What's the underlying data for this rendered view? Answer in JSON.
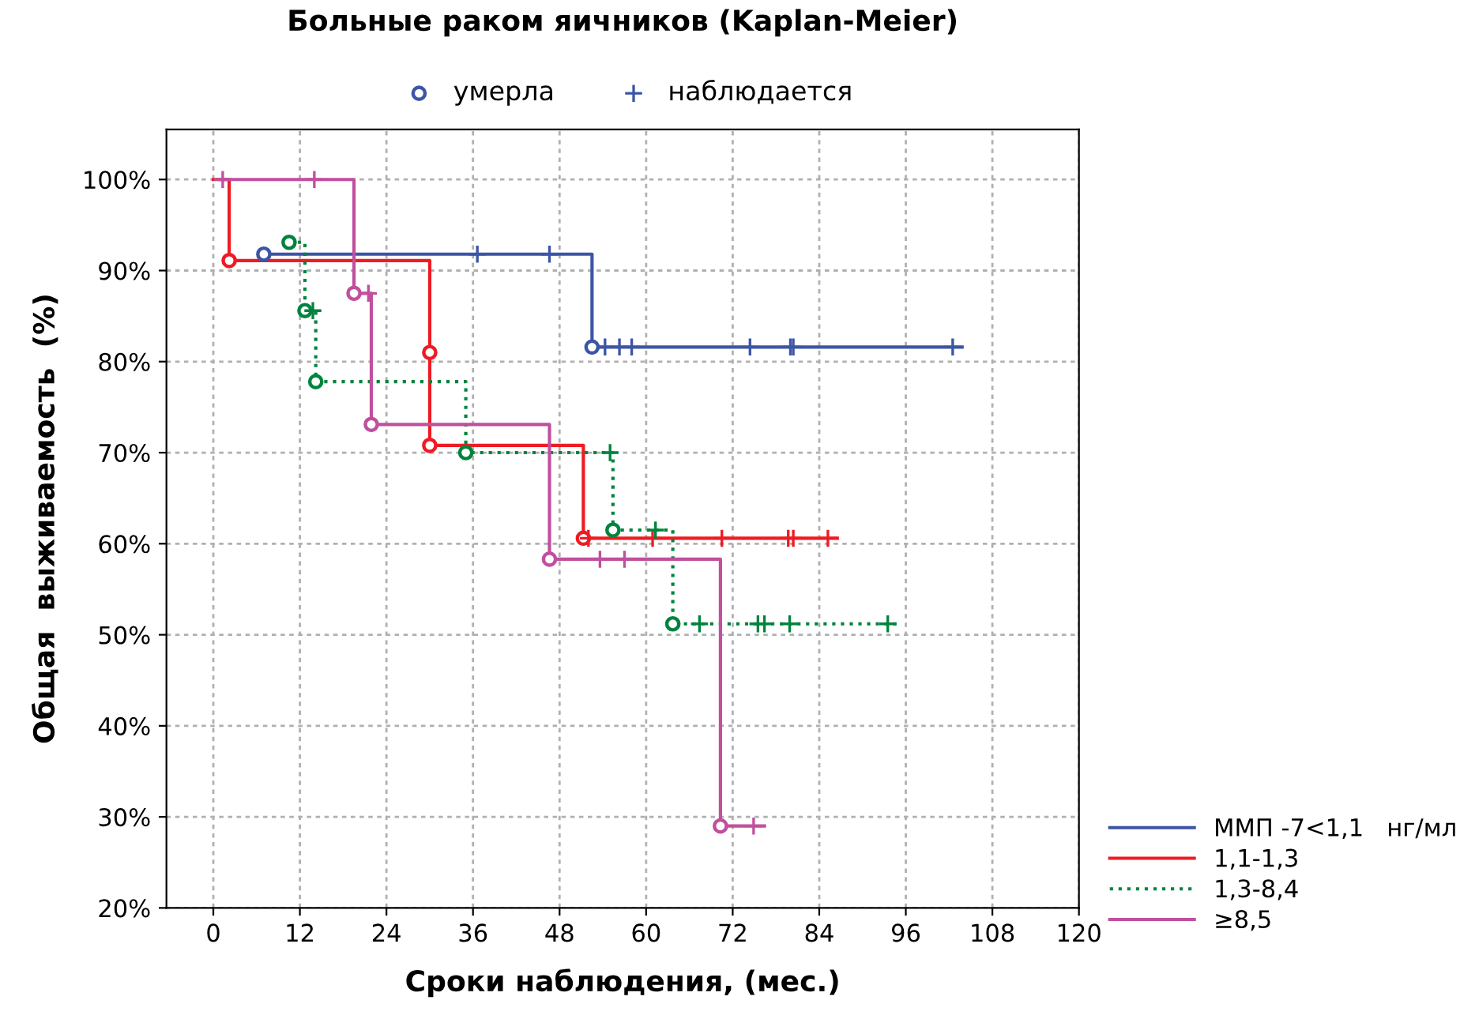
{
  "chart_data": {
    "type": "step",
    "title": "Больные раком яичников (Kaplan-Meier)",
    "xlabel": "Сроки наблюдения, (мес.)",
    "ylabel": "Общая  выживаемость  (%)",
    "xlim": [
      -6.5,
      120
    ],
    "xticks": [
      0,
      12,
      24,
      36,
      48,
      60,
      72,
      84,
      96,
      108,
      120
    ],
    "ylim": [
      20,
      105.5
    ],
    "yticks": [
      {
        "value": 20,
        "label": "20%"
      },
      {
        "value": 30,
        "label": "30%"
      },
      {
        "value": 40,
        "label": "40%"
      },
      {
        "value": 50,
        "label": "50%"
      },
      {
        "value": 60,
        "label": "60%"
      },
      {
        "value": 70,
        "label": "70%"
      },
      {
        "value": 80,
        "label": "80%"
      },
      {
        "value": 90,
        "label": "90%"
      },
      {
        "value": 100,
        "label": "100%"
      }
    ],
    "grid": true,
    "legend": "right",
    "series": [
      {
        "name": "ММП -7<1,1   нг/мл",
        "color": "#3c55a5",
        "line_style": "solid",
        "x": [
          7,
          52.5,
          103.8
        ],
        "values": [
          91.8,
          81.6,
          81.6
        ]
      },
      {
        "name": "1,1-1,3",
        "color": "#ed1c24",
        "line_style": "solid",
        "x": [
          0,
          2.2,
          30,
          30,
          51.3,
          86.5
        ],
        "values": [
          100,
          91.1,
          81,
          70.8,
          60.6,
          60.6
        ]
      },
      {
        "name": "1,3-8,4",
        "color": "#00843d",
        "line_style": "dotted",
        "x": [
          10.5,
          12.7,
          14.2,
          35,
          55.4,
          63.7,
          94.8
        ],
        "values": [
          93.1,
          85.6,
          77.8,
          70,
          61.5,
          51.2,
          51.2
        ]
      },
      {
        "name": "≥8,5",
        "color": "#c0509e",
        "line_style": "solid",
        "x": [
          1,
          19.5,
          21.9,
          46.6,
          70.3,
          76.4
        ],
        "values": [
          100,
          87.5,
          73.1,
          58.3,
          29,
          29
        ]
      },
      {
        "type": "scatter",
        "name": "умерла",
        "marker": "circle",
        "color": "#3c55a5",
        "x": [
          7,
          52.5
        ],
        "values": [
          91.8,
          81.6
        ]
      },
      {
        "type": "scatter",
        "name": "наблюдается",
        "marker": "cross",
        "color": "#3c55a5",
        "x": [
          36.6,
          46.6,
          54.3,
          56.3,
          58,
          74.4,
          80,
          80.4,
          102.5
        ],
        "values": [
          91.8,
          91.8,
          81.6,
          81.6,
          81.6,
          81.6,
          81.6,
          81.6,
          81.6
        ]
      },
      {
        "type": "scatter",
        "marker": "circle",
        "color": "#ed1c24",
        "x": [
          2.2,
          30,
          30,
          51.3
        ],
        "values": [
          91.1,
          81,
          70.8,
          60.6
        ]
      },
      {
        "type": "scatter",
        "marker": "cross",
        "color": "#ed1c24",
        "x": [
          52,
          60.9,
          70.5,
          79.7,
          80.4,
          85.2
        ],
        "values": [
          60.6,
          60.6,
          60.6,
          60.6,
          60.6,
          60.6
        ]
      },
      {
        "type": "scatter",
        "marker": "circle",
        "color": "#00843d",
        "x": [
          10.5,
          12.7,
          14.2,
          35,
          55.4,
          63.7
        ],
        "values": [
          93.1,
          85.6,
          77.8,
          70,
          61.5,
          51.2
        ]
      },
      {
        "type": "scatter",
        "marker": "cross",
        "color": "#00843d",
        "x": [
          13.8,
          55,
          61.3,
          67.4,
          75.5,
          76.4,
          79.9,
          93.5
        ],
        "values": [
          85.6,
          70,
          61.5,
          51.2,
          51.2,
          51.2,
          51.2,
          51.2
        ]
      },
      {
        "type": "scatter",
        "marker": "circle",
        "color": "#c0509e",
        "x": [
          19.5,
          21.9,
          46.6,
          70.3
        ],
        "values": [
          87.5,
          73.1,
          58.3,
          29
        ]
      },
      {
        "type": "scatter",
        "marker": "cross",
        "color": "#c0509e",
        "x": [
          1.3,
          14,
          21.5,
          53.6,
          57,
          74.9
        ],
        "values": [
          100,
          100,
          87.5,
          58.3,
          58.3,
          29
        ]
      }
    ]
  }
}
